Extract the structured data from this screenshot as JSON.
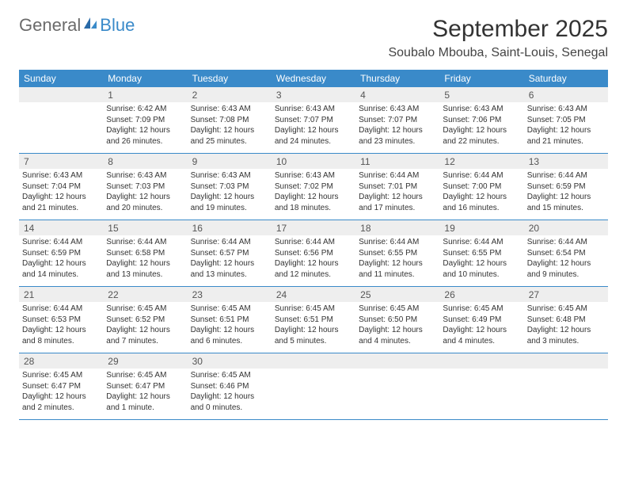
{
  "logo": {
    "text1": "General",
    "text2": "Blue"
  },
  "title": "September 2025",
  "location": "Soubalo Mbouba, Saint-Louis, Senegal",
  "dow": [
    "Sunday",
    "Monday",
    "Tuesday",
    "Wednesday",
    "Thursday",
    "Friday",
    "Saturday"
  ],
  "colors": {
    "header_bg": "#3a8ac9",
    "daynum_bg": "#eeeeee",
    "text": "#333333"
  },
  "weeks": [
    [
      {
        "n": "",
        "sunrise": "",
        "sunset": "",
        "daylight": ""
      },
      {
        "n": "1",
        "sunrise": "Sunrise: 6:42 AM",
        "sunset": "Sunset: 7:09 PM",
        "daylight": "Daylight: 12 hours and 26 minutes."
      },
      {
        "n": "2",
        "sunrise": "Sunrise: 6:43 AM",
        "sunset": "Sunset: 7:08 PM",
        "daylight": "Daylight: 12 hours and 25 minutes."
      },
      {
        "n": "3",
        "sunrise": "Sunrise: 6:43 AM",
        "sunset": "Sunset: 7:07 PM",
        "daylight": "Daylight: 12 hours and 24 minutes."
      },
      {
        "n": "4",
        "sunrise": "Sunrise: 6:43 AM",
        "sunset": "Sunset: 7:07 PM",
        "daylight": "Daylight: 12 hours and 23 minutes."
      },
      {
        "n": "5",
        "sunrise": "Sunrise: 6:43 AM",
        "sunset": "Sunset: 7:06 PM",
        "daylight": "Daylight: 12 hours and 22 minutes."
      },
      {
        "n": "6",
        "sunrise": "Sunrise: 6:43 AM",
        "sunset": "Sunset: 7:05 PM",
        "daylight": "Daylight: 12 hours and 21 minutes."
      }
    ],
    [
      {
        "n": "7",
        "sunrise": "Sunrise: 6:43 AM",
        "sunset": "Sunset: 7:04 PM",
        "daylight": "Daylight: 12 hours and 21 minutes."
      },
      {
        "n": "8",
        "sunrise": "Sunrise: 6:43 AM",
        "sunset": "Sunset: 7:03 PM",
        "daylight": "Daylight: 12 hours and 20 minutes."
      },
      {
        "n": "9",
        "sunrise": "Sunrise: 6:43 AM",
        "sunset": "Sunset: 7:03 PM",
        "daylight": "Daylight: 12 hours and 19 minutes."
      },
      {
        "n": "10",
        "sunrise": "Sunrise: 6:43 AM",
        "sunset": "Sunset: 7:02 PM",
        "daylight": "Daylight: 12 hours and 18 minutes."
      },
      {
        "n": "11",
        "sunrise": "Sunrise: 6:44 AM",
        "sunset": "Sunset: 7:01 PM",
        "daylight": "Daylight: 12 hours and 17 minutes."
      },
      {
        "n": "12",
        "sunrise": "Sunrise: 6:44 AM",
        "sunset": "Sunset: 7:00 PM",
        "daylight": "Daylight: 12 hours and 16 minutes."
      },
      {
        "n": "13",
        "sunrise": "Sunrise: 6:44 AM",
        "sunset": "Sunset: 6:59 PM",
        "daylight": "Daylight: 12 hours and 15 minutes."
      }
    ],
    [
      {
        "n": "14",
        "sunrise": "Sunrise: 6:44 AM",
        "sunset": "Sunset: 6:59 PM",
        "daylight": "Daylight: 12 hours and 14 minutes."
      },
      {
        "n": "15",
        "sunrise": "Sunrise: 6:44 AM",
        "sunset": "Sunset: 6:58 PM",
        "daylight": "Daylight: 12 hours and 13 minutes."
      },
      {
        "n": "16",
        "sunrise": "Sunrise: 6:44 AM",
        "sunset": "Sunset: 6:57 PM",
        "daylight": "Daylight: 12 hours and 13 minutes."
      },
      {
        "n": "17",
        "sunrise": "Sunrise: 6:44 AM",
        "sunset": "Sunset: 6:56 PM",
        "daylight": "Daylight: 12 hours and 12 minutes."
      },
      {
        "n": "18",
        "sunrise": "Sunrise: 6:44 AM",
        "sunset": "Sunset: 6:55 PM",
        "daylight": "Daylight: 12 hours and 11 minutes."
      },
      {
        "n": "19",
        "sunrise": "Sunrise: 6:44 AM",
        "sunset": "Sunset: 6:55 PM",
        "daylight": "Daylight: 12 hours and 10 minutes."
      },
      {
        "n": "20",
        "sunrise": "Sunrise: 6:44 AM",
        "sunset": "Sunset: 6:54 PM",
        "daylight": "Daylight: 12 hours and 9 minutes."
      }
    ],
    [
      {
        "n": "21",
        "sunrise": "Sunrise: 6:44 AM",
        "sunset": "Sunset: 6:53 PM",
        "daylight": "Daylight: 12 hours and 8 minutes."
      },
      {
        "n": "22",
        "sunrise": "Sunrise: 6:45 AM",
        "sunset": "Sunset: 6:52 PM",
        "daylight": "Daylight: 12 hours and 7 minutes."
      },
      {
        "n": "23",
        "sunrise": "Sunrise: 6:45 AM",
        "sunset": "Sunset: 6:51 PM",
        "daylight": "Daylight: 12 hours and 6 minutes."
      },
      {
        "n": "24",
        "sunrise": "Sunrise: 6:45 AM",
        "sunset": "Sunset: 6:51 PM",
        "daylight": "Daylight: 12 hours and 5 minutes."
      },
      {
        "n": "25",
        "sunrise": "Sunrise: 6:45 AM",
        "sunset": "Sunset: 6:50 PM",
        "daylight": "Daylight: 12 hours and 4 minutes."
      },
      {
        "n": "26",
        "sunrise": "Sunrise: 6:45 AM",
        "sunset": "Sunset: 6:49 PM",
        "daylight": "Daylight: 12 hours and 4 minutes."
      },
      {
        "n": "27",
        "sunrise": "Sunrise: 6:45 AM",
        "sunset": "Sunset: 6:48 PM",
        "daylight": "Daylight: 12 hours and 3 minutes."
      }
    ],
    [
      {
        "n": "28",
        "sunrise": "Sunrise: 6:45 AM",
        "sunset": "Sunset: 6:47 PM",
        "daylight": "Daylight: 12 hours and 2 minutes."
      },
      {
        "n": "29",
        "sunrise": "Sunrise: 6:45 AM",
        "sunset": "Sunset: 6:47 PM",
        "daylight": "Daylight: 12 hours and 1 minute."
      },
      {
        "n": "30",
        "sunrise": "Sunrise: 6:45 AM",
        "sunset": "Sunset: 6:46 PM",
        "daylight": "Daylight: 12 hours and 0 minutes."
      },
      {
        "n": "",
        "sunrise": "",
        "sunset": "",
        "daylight": ""
      },
      {
        "n": "",
        "sunrise": "",
        "sunset": "",
        "daylight": ""
      },
      {
        "n": "",
        "sunrise": "",
        "sunset": "",
        "daylight": ""
      },
      {
        "n": "",
        "sunrise": "",
        "sunset": "",
        "daylight": ""
      }
    ]
  ]
}
